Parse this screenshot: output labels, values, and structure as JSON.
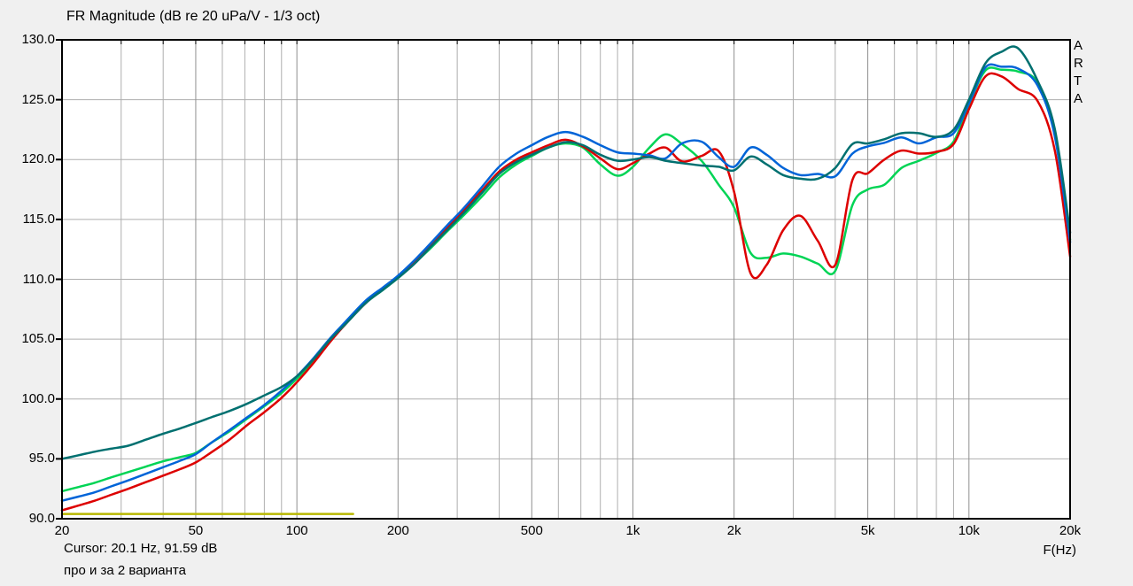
{
  "window": {
    "background": "#f0f0f0",
    "plot_background": "#ffffff"
  },
  "header": {
    "title": "FR Magnitude (dB re 20 uPa/V - 1/3 oct)"
  },
  "watermark": {
    "letters": [
      "A",
      "R",
      "T",
      "A"
    ]
  },
  "status": {
    "cursor_readout": "Cursor: 20.1 Hz, 91.59 dB",
    "note": "про и за 2 варианта"
  },
  "axes": {
    "x": {
      "unit_label": "F(Hz)",
      "scale": "log"
    },
    "y": {
      "unit": "dB"
    }
  },
  "colors": {
    "grid_minor": "#aeaeae",
    "grid_major": "#8f8f8f",
    "border": "#000000",
    "red": "#dd0000",
    "blue": "#0064d8",
    "green": "#00d455",
    "teal": "#007070",
    "olive": "#b8b800"
  },
  "chart_data": {
    "type": "line",
    "title": "FR Magnitude (dB re 20 uPa/V - 1/3 oct)",
    "xlabel": "F(Hz)",
    "ylabel": "dB re 20 uPa/V",
    "x_scale": "log",
    "xlim": [
      20,
      20000
    ],
    "ylim": [
      90,
      130
    ],
    "y_step": 5,
    "grid": true,
    "legend": "none",
    "x_major_ticks": [
      {
        "f": 20,
        "label": "20"
      },
      {
        "f": 50,
        "label": "50"
      },
      {
        "f": 100,
        "label": "100"
      },
      {
        "f": 200,
        "label": "200"
      },
      {
        "f": 500,
        "label": "500"
      },
      {
        "f": 1000,
        "label": "1k"
      },
      {
        "f": 2000,
        "label": "2k"
      },
      {
        "f": 5000,
        "label": "5k"
      },
      {
        "f": 10000,
        "label": "10k"
      },
      {
        "f": 20000,
        "label": "20k"
      }
    ],
    "y_major_ticks": [
      {
        "v": 130,
        "label": "130.0"
      },
      {
        "v": 125,
        "label": "125.0"
      },
      {
        "v": 120,
        "label": "120.0"
      },
      {
        "v": 115,
        "label": "115.0"
      },
      {
        "v": 110,
        "label": "110.0"
      },
      {
        "v": 105,
        "label": "105.0"
      },
      {
        "v": 100,
        "label": "100.0"
      },
      {
        "v": 95,
        "label": "95.0"
      },
      {
        "v": 90,
        "label": "90.0"
      }
    ],
    "x_minor_gridlines": [
      30,
      40,
      60,
      70,
      80,
      90,
      300,
      400,
      600,
      700,
      800,
      900,
      3000,
      4000,
      6000,
      7000,
      8000,
      9000
    ],
    "y_gridlines": [
      95,
      100,
      105,
      110,
      115,
      120,
      125
    ],
    "freqs": [
      20,
      22.4,
      25,
      28,
      31.5,
      35.5,
      40,
      45,
      50,
      56,
      63,
      71,
      80,
      90,
      100,
      112,
      125,
      140,
      160,
      180,
      200,
      224,
      250,
      280,
      315,
      355,
      400,
      450,
      500,
      560,
      630,
      710,
      800,
      900,
      1000,
      1120,
      1250,
      1400,
      1600,
      1800,
      2000,
      2240,
      2500,
      2800,
      3150,
      3550,
      4000,
      4500,
      5000,
      5600,
      6300,
      7100,
      8000,
      9000,
      10000,
      11200,
      12500,
      14000,
      16000,
      18000,
      20000
    ],
    "series": [
      {
        "name": "olive-overlay-line",
        "color_key": "olive",
        "freqs": [
          20,
          147
        ],
        "values": [
          90.4,
          90.4
        ]
      },
      {
        "name": "green-curve",
        "color_key": "green",
        "values": [
          92.3,
          92.65,
          93.0,
          93.45,
          93.9,
          94.35,
          94.8,
          95.15,
          95.5,
          96.4,
          97.3,
          98.35,
          99.4,
          100.5,
          101.7,
          103.2,
          104.8,
          106.3,
          108.0,
          109.1,
          110.1,
          111.35,
          112.6,
          114.0,
          115.4,
          116.9,
          118.5,
          119.6,
          120.3,
          121.0,
          121.35,
          121.0,
          119.6,
          118.65,
          119.4,
          121.0,
          122.1,
          121.3,
          119.9,
          117.9,
          116.0,
          112.2,
          111.8,
          112.15,
          111.9,
          111.3,
          110.7,
          116.2,
          117.5,
          117.9,
          119.3,
          119.9,
          120.55,
          121.5,
          124.6,
          127.45,
          127.5,
          127.35,
          126.45,
          122.3,
          113.3
        ]
      },
      {
        "name": "red-curve",
        "color_key": "red",
        "values": [
          90.7,
          91.1,
          91.5,
          92.0,
          92.5,
          93.05,
          93.6,
          94.15,
          94.7,
          95.6,
          96.6,
          97.8,
          98.9,
          100.1,
          101.4,
          103.0,
          104.7,
          106.3,
          108.0,
          109.2,
          110.2,
          111.5,
          112.8,
          114.3,
          115.8,
          117.4,
          119.0,
          120.0,
          120.6,
          121.2,
          121.65,
          121.1,
          120.1,
          119.2,
          119.7,
          120.5,
          121.0,
          119.85,
          120.3,
          120.7,
          117.3,
          110.5,
          111.2,
          114.1,
          115.3,
          113.2,
          111.2,
          118.3,
          118.85,
          120.0,
          120.75,
          120.5,
          120.65,
          121.3,
          124.2,
          126.95,
          126.95,
          125.9,
          124.9,
          120.8,
          111.9
        ]
      },
      {
        "name": "blue-curve",
        "color_key": "blue",
        "values": [
          91.5,
          91.85,
          92.2,
          92.7,
          93.2,
          93.75,
          94.3,
          94.85,
          95.4,
          96.4,
          97.4,
          98.45,
          99.5,
          100.7,
          101.9,
          103.4,
          105.0,
          106.5,
          108.2,
          109.3,
          110.3,
          111.6,
          113.0,
          114.5,
          116.0,
          117.7,
          119.4,
          120.5,
          121.2,
          121.9,
          122.3,
          121.9,
          121.2,
          120.6,
          120.5,
          120.35,
          120.1,
          121.35,
          121.5,
          120.2,
          119.4,
          121.0,
          120.4,
          119.3,
          118.7,
          118.8,
          118.6,
          120.5,
          121.1,
          121.4,
          121.85,
          121.35,
          121.85,
          122.2,
          124.7,
          127.7,
          127.75,
          127.6,
          126.2,
          122.0,
          113.1
        ]
      },
      {
        "name": "teal-curve",
        "color_key": "teal",
        "values": [
          95.0,
          95.3,
          95.6,
          95.85,
          96.1,
          96.6,
          97.1,
          97.55,
          98.0,
          98.5,
          99.0,
          99.6,
          100.3,
          101.0,
          101.9,
          103.3,
          104.9,
          106.3,
          108.0,
          109.1,
          110.1,
          111.3,
          112.7,
          114.1,
          115.6,
          117.2,
          118.8,
          119.8,
          120.4,
          121.0,
          121.45,
          121.2,
          120.4,
          119.9,
          120.0,
          120.2,
          119.9,
          119.7,
          119.5,
          119.4,
          119.1,
          120.25,
          119.6,
          118.7,
          118.4,
          118.4,
          119.3,
          121.3,
          121.35,
          121.7,
          122.2,
          122.2,
          121.9,
          122.5,
          125.0,
          128.05,
          129.0,
          129.3,
          126.6,
          122.6,
          113.9
        ]
      }
    ]
  }
}
